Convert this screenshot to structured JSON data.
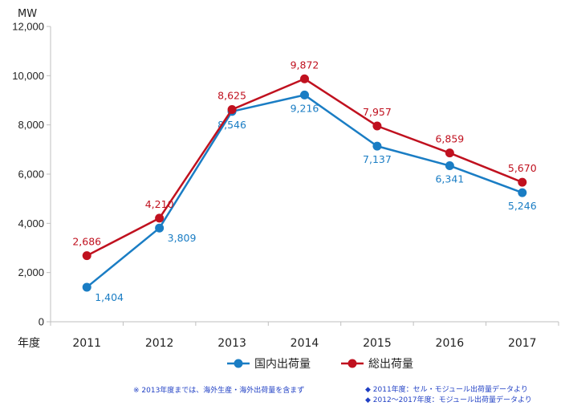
{
  "chart_data": {
    "type": "line",
    "y_unit": "MW",
    "x_unit": "年度",
    "categories": [
      "2011",
      "2012",
      "2013",
      "2014",
      "2015",
      "2016",
      "2017"
    ],
    "ylim": [
      0,
      12000
    ],
    "yticks": [
      0,
      2000,
      4000,
      6000,
      8000,
      10000,
      12000
    ],
    "ytick_labels": [
      "0",
      "2,000",
      "4,000",
      "6,000",
      "8,000",
      "10,000",
      "12,000"
    ],
    "grid": false,
    "legend_position": "bottom",
    "series": [
      {
        "name": "国内出荷量",
        "color": "#1a7dc4",
        "values": [
          1404,
          3809,
          8546,
          9216,
          7137,
          6341,
          5246
        ],
        "labels": [
          "1,404",
          "3,809",
          "8,546",
          "9,216",
          "7,137",
          "6,341",
          "5,246"
        ],
        "label_position": "below"
      },
      {
        "name": "総出荷量",
        "color": "#c0111f",
        "values": [
          2686,
          4210,
          8625,
          9872,
          7957,
          6859,
          5670
        ],
        "labels": [
          "2,686",
          "4,210",
          "8,625",
          "9,872",
          "7,957",
          "6,859",
          "5,670"
        ],
        "label_position": "above"
      }
    ],
    "notes": {
      "left": "※ 2013年度までは、海外生産・海外出荷量を含まず",
      "right": [
        "◆ 2011年度：セル・モジュール出荷量データより",
        "◆ 2012～2017年度：モジュール出荷量データより"
      ]
    }
  }
}
